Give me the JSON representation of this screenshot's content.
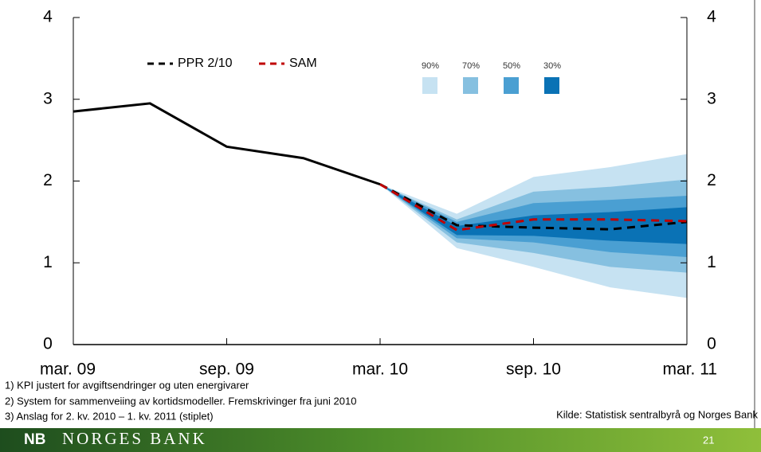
{
  "chart_data": {
    "type": "line",
    "x": [
      0,
      1,
      2,
      3,
      4,
      5,
      6,
      7,
      8
    ],
    "xlim": [
      0,
      8
    ],
    "xticks": [
      {
        "value": 0,
        "label": "mar. 09"
      },
      {
        "value": 2,
        "label": "sep. 09"
      },
      {
        "value": 4,
        "label": "mar. 10"
      },
      {
        "value": 6,
        "label": "sep. 10"
      },
      {
        "value": 8,
        "label": "mar. 11"
      }
    ],
    "ylim": [
      0,
      4
    ],
    "yticks": [
      0,
      1,
      2,
      3,
      4
    ],
    "y2lim": [
      0,
      4
    ],
    "y2ticks": [
      0,
      1,
      2,
      3,
      4
    ],
    "series": [
      {
        "color": "#000000",
        "dash": false,
        "values": [
          2.85,
          2.95,
          2.42,
          2.28,
          1.96,
          null,
          null,
          null,
          null
        ]
      },
      {
        "name": "PPR 2/10",
        "color": "#000000",
        "dash": true,
        "values": [
          null,
          null,
          null,
          null,
          1.96,
          1.46,
          1.43,
          1.41,
          1.5
        ]
      },
      {
        "name": "SAM",
        "color": "#c00000",
        "dash": true,
        "values": [
          null,
          null,
          null,
          null,
          1.96,
          1.4,
          1.53,
          1.53,
          1.51
        ]
      }
    ],
    "bands": [
      {
        "name": "90%",
        "color": "#c6e2f2",
        "lower": [
          null,
          null,
          null,
          null,
          1.96,
          1.18,
          0.95,
          0.7,
          0.57
        ],
        "upper": [
          null,
          null,
          null,
          null,
          1.96,
          1.6,
          2.05,
          2.17,
          2.33
        ]
      },
      {
        "name": "70%",
        "color": "#86c0e0",
        "lower": [
          null,
          null,
          null,
          null,
          1.96,
          1.25,
          1.12,
          0.95,
          0.88
        ],
        "upper": [
          null,
          null,
          null,
          null,
          1.96,
          1.53,
          1.87,
          1.93,
          2.02
        ]
      },
      {
        "name": "50%",
        "color": "#4a9fd2",
        "lower": [
          null,
          null,
          null,
          null,
          1.96,
          1.3,
          1.25,
          1.13,
          1.07
        ],
        "upper": [
          null,
          null,
          null,
          null,
          1.96,
          1.5,
          1.73,
          1.77,
          1.82
        ]
      },
      {
        "name": "30%",
        "color": "#0a72b5",
        "lower": [
          null,
          null,
          null,
          null,
          1.96,
          1.34,
          1.33,
          1.27,
          1.23
        ],
        "upper": [
          null,
          null,
          null,
          null,
          1.96,
          1.45,
          1.58,
          1.62,
          1.68
        ]
      }
    ]
  },
  "footnotes": [
    "1)  KPI justert for avgiftsendringer og uten energivarer",
    "2)  System for sammenveiing av kortidsmodeller. Fremskrivinger fra juni 2010",
    "3)  Anslag for 2. kv. 2010 – 1. kv. 2011 (stiplet)"
  ],
  "source": "Kilde: Statistisk sentralbyrå og Norges Bank",
  "footer": {
    "logo": "NB",
    "name": "NORGES BANK",
    "page": "21"
  }
}
